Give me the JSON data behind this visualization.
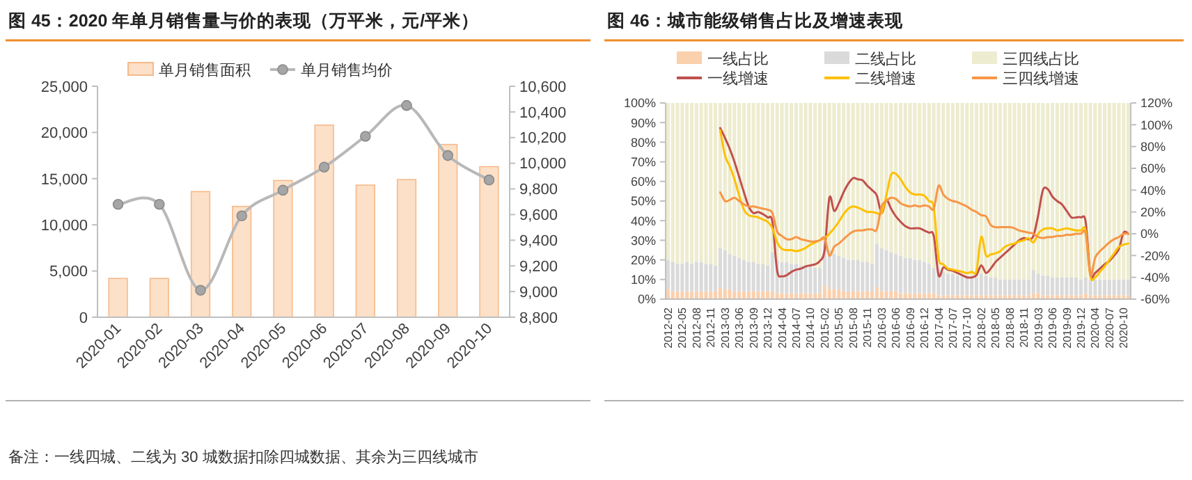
{
  "chart_data": [
    {
      "type": "bar",
      "title": "图 45：2020 年单月销售量与价的表现（万平米，元/平米）",
      "categories": [
        "2020-01",
        "2020-02",
        "2020-03",
        "2020-04",
        "2020-05",
        "2020-06",
        "2020-07",
        "2020-08",
        "2020-09",
        "2020-10"
      ],
      "series": [
        {
          "name": "单月销售面积",
          "color": "#fce0c8",
          "values": [
            4200,
            4200,
            13600,
            12000,
            14800,
            20800,
            14300,
            14900,
            18700,
            16300
          ]
        },
        {
          "name": "单月销售均价",
          "type": "line",
          "axis": "y2",
          "color": "#b8b8b8",
          "values": [
            9680,
            9680,
            9010,
            9590,
            9790,
            9970,
            10210,
            10450,
            10060,
            9870
          ]
        }
      ],
      "ylim": [
        0,
        25000
      ],
      "yticks": [
        0,
        {
          "value": 5000,
          "label": "5,000"
        },
        {
          "value": 10000,
          "label": "10,000"
        },
        {
          "value": 15000,
          "label": "15,000"
        },
        {
          "value": 20000,
          "label": "20,000"
        },
        {
          "value": 25000,
          "label": "25,000"
        }
      ],
      "y2lim": [
        8800,
        10600
      ],
      "y2ticks": [
        {
          "value": 8800,
          "label": "8,800"
        },
        {
          "value": 9000,
          "label": "9,000"
        },
        {
          "value": 9200,
          "label": "9,200"
        },
        {
          "value": 9400,
          "label": "9,400"
        },
        {
          "value": 9600,
          "label": "9,600"
        },
        {
          "value": 9800,
          "label": "9,800"
        },
        {
          "value": 10000,
          "label": "10,000"
        },
        {
          "value": 10200,
          "label": "10,200"
        },
        {
          "value": 10400,
          "label": "10,400"
        },
        {
          "value": 10600,
          "label": "10,600"
        }
      ],
      "legend": "top",
      "marker": "circle",
      "annotations": [
        "备注：一线四城、二线为 30 城数据扣除四城数据、其余为三四线城市"
      ]
    },
    {
      "type": "bar",
      "title": "图 46：城市能级销售占比及增速表现",
      "stacked": true,
      "categories": [
        "2012-02",
        null,
        null,
        "2012-05",
        null,
        null,
        "2012-08",
        null,
        null,
        "2012-11",
        null,
        null,
        "2013-03",
        null,
        null,
        "2013-06",
        null,
        null,
        "2013-09",
        null,
        null,
        "2013-12",
        null,
        null,
        "2014-04",
        null,
        null,
        "2014-07",
        null,
        null,
        "2014-10",
        null,
        null,
        "2015-02",
        null,
        null,
        "2015-05",
        null,
        null,
        "2015-08",
        null,
        null,
        "2015-11",
        null,
        null,
        "2016-03",
        null,
        null,
        "2016-06",
        null,
        null,
        "2016-09",
        null,
        null,
        "2016-12",
        null,
        null,
        "2017-04",
        null,
        null,
        "2017-07",
        null,
        null,
        "2017-10",
        null,
        null,
        "2018-02",
        null,
        null,
        "2018-05",
        null,
        null,
        "2018-08",
        null,
        null,
        "2018-11",
        null,
        null,
        "2019-03",
        null,
        null,
        "2019-06",
        null,
        null,
        "2019-09",
        null,
        null,
        "2019-12",
        null,
        null,
        "2020-04",
        null,
        null,
        "2020-07",
        null,
        null,
        "2020-10",
        null
      ],
      "series": [
        {
          "name": "一线占比",
          "color": "#fbd0ad",
          "values": [
            5,
            4,
            4,
            4,
            4,
            4,
            4,
            4,
            4,
            4,
            4,
            6,
            5,
            5,
            4,
            4,
            4,
            4,
            4,
            4,
            4,
            4,
            4,
            3,
            3,
            3,
            3,
            3,
            3,
            3,
            3,
            3,
            3,
            7,
            5,
            5,
            5,
            4,
            4,
            4,
            4,
            4,
            4,
            4,
            6,
            4,
            4,
            4,
            4,
            3,
            3,
            3,
            3,
            3,
            3,
            3,
            3,
            2,
            2,
            2,
            2,
            2,
            2,
            2,
            2,
            2,
            2,
            2,
            2,
            2,
            2,
            2,
            2,
            2,
            2,
            2,
            2,
            3,
            3,
            2,
            2,
            2,
            2,
            2,
            2,
            2,
            2,
            2,
            3,
            2,
            2,
            2,
            2,
            2,
            2,
            2,
            2,
            2
          ]
        },
        {
          "name": "二线占比",
          "color": "#dadada",
          "values": [
            15,
            15,
            14,
            14,
            15,
            14,
            15,
            15,
            14,
            14,
            13,
            20,
            20,
            18,
            18,
            17,
            16,
            15,
            15,
            14,
            14,
            13,
            20,
            17,
            16,
            16,
            15,
            15,
            14,
            14,
            14,
            13,
            13,
            23,
            20,
            18,
            17,
            17,
            16,
            16,
            16,
            15,
            15,
            14,
            22,
            22,
            21,
            20,
            19,
            19,
            18,
            18,
            17,
            17,
            16,
            15,
            13,
            13,
            12,
            11,
            11,
            10,
            10,
            10,
            9,
            9,
            11,
            10,
            9,
            9,
            8,
            8,
            8,
            8,
            8,
            8,
            8,
            12,
            10,
            10,
            10,
            9,
            9,
            9,
            9,
            9,
            9,
            8,
            8,
            8,
            8,
            8,
            8,
            8,
            8,
            8,
            8,
            8
          ]
        },
        {
          "name": "三四线占比",
          "color": "#eeecd0",
          "values": [
            80,
            81,
            82,
            82,
            81,
            82,
            81,
            81,
            82,
            82,
            83,
            74,
            75,
            77,
            78,
            79,
            80,
            81,
            81,
            82,
            82,
            83,
            76,
            80,
            81,
            81,
            82,
            82,
            83,
            83,
            83,
            84,
            84,
            70,
            75,
            77,
            78,
            79,
            80,
            80,
            80,
            81,
            81,
            82,
            72,
            74,
            75,
            76,
            77,
            78,
            79,
            79,
            80,
            80,
            81,
            82,
            84,
            85,
            86,
            87,
            87,
            88,
            88,
            88,
            89,
            89,
            87,
            88,
            89,
            89,
            90,
            90,
            90,
            90,
            90,
            90,
            90,
            85,
            87,
            88,
            88,
            89,
            89,
            89,
            89,
            89,
            89,
            90,
            89,
            90,
            90,
            90,
            90,
            90,
            90,
            90,
            90,
            90
          ]
        },
        {
          "name": "一线增速",
          "type": "line",
          "axis": "y2",
          "color": "#c0504d",
          "values": [
            null,
            null,
            null,
            null,
            null,
            null,
            null,
            null,
            null,
            null,
            null,
            97,
            88,
            78,
            66,
            52,
            38,
            25,
            19,
            20,
            18,
            15,
            11,
            -34,
            -39,
            -38,
            -35,
            -33,
            -32,
            -30,
            -29,
            -28,
            -25,
            -15,
            33,
            21,
            28,
            38,
            46,
            51,
            50,
            49,
            44,
            40,
            35,
            19,
            31,
            23,
            16,
            11,
            7,
            5,
            5,
            5,
            3,
            1,
            -2,
            -38,
            -31,
            -33,
            -34,
            -36,
            -38,
            -40,
            -40,
            -38,
            -29,
            -36,
            -32,
            -26,
            -22,
            -18,
            -14,
            -10,
            -6,
            -4,
            -5,
            -2,
            17,
            40,
            41,
            34,
            30,
            27,
            21,
            15,
            15,
            15,
            11,
            -37,
            -36,
            -32,
            -28,
            -25,
            -20,
            -14,
            1,
            0
          ]
        },
        {
          "name": "二线增速",
          "type": "line",
          "axis": "y2",
          "color": "#ffc000",
          "values": [
            null,
            null,
            null,
            null,
            null,
            null,
            null,
            null,
            null,
            null,
            null,
            95,
            72,
            62,
            50,
            35,
            22,
            17,
            16,
            15,
            13,
            11,
            5,
            -8,
            -14,
            -15,
            -15,
            -16,
            -15,
            -13,
            -10,
            -8,
            -6,
            -4,
            0,
            5,
            11,
            18,
            23,
            25,
            24,
            22,
            20,
            20,
            19,
            19,
            35,
            54,
            55,
            50,
            43,
            38,
            36,
            36,
            35,
            30,
            24,
            -22,
            -28,
            -32,
            -33,
            -34,
            -35,
            -36,
            -35,
            -34,
            -3,
            -20,
            -19,
            -18,
            -16,
            -12,
            -10,
            -9,
            -7,
            -6,
            -4,
            -8,
            0,
            4,
            5,
            5,
            3,
            4,
            5,
            4,
            3,
            3,
            3,
            -39,
            -40,
            -35,
            -30,
            -24,
            -18,
            -12,
            -10,
            -9
          ]
        },
        {
          "name": "三四线增速",
          "type": "line",
          "axis": "y2",
          "color": "#f79646",
          "values": [
            null,
            null,
            null,
            null,
            null,
            null,
            null,
            null,
            null,
            null,
            null,
            38,
            30,
            31,
            33,
            30,
            27,
            25,
            25,
            24,
            23,
            22,
            19,
            2,
            -2,
            -5,
            -5,
            -3,
            -5,
            -6,
            -7,
            -7,
            -6,
            -4,
            -20,
            -12,
            -9,
            -5,
            -1,
            2,
            3,
            3,
            4,
            4,
            4,
            25,
            30,
            33,
            32,
            28,
            26,
            25,
            26,
            25,
            26,
            25,
            23,
            44,
            36,
            32,
            30,
            29,
            27,
            25,
            22,
            20,
            17,
            16,
            8,
            6,
            6,
            6,
            6,
            5,
            3,
            2,
            1,
            0,
            -3,
            -4,
            -3,
            -3,
            -2,
            -2,
            -1,
            -1,
            0,
            0,
            0,
            -38,
            -22,
            -16,
            -12,
            -8,
            -5,
            -3,
            0,
            0
          ]
        }
      ],
      "ylim": [
        0,
        100
      ],
      "yticks": [
        {
          "value": 0,
          "label": "0%"
        },
        {
          "value": 10,
          "label": "10%"
        },
        {
          "value": 20,
          "label": "20%"
        },
        {
          "value": 30,
          "label": "30%"
        },
        {
          "value": 40,
          "label": "40%"
        },
        {
          "value": 50,
          "label": "50%"
        },
        {
          "value": 60,
          "label": "60%"
        },
        {
          "value": 70,
          "label": "70%"
        },
        {
          "value": 80,
          "label": "80%"
        },
        {
          "value": 90,
          "label": "90%"
        },
        {
          "value": 100,
          "label": "100%"
        }
      ],
      "y2lim": [
        -60,
        120
      ],
      "y2ticks": [
        {
          "value": -60,
          "label": "-60%"
        },
        {
          "value": -40,
          "label": "-40%"
        },
        {
          "value": -20,
          "label": "-20%"
        },
        {
          "value": 0,
          "label": "0%"
        },
        {
          "value": 20,
          "label": "20%"
        },
        {
          "value": 40,
          "label": "40%"
        },
        {
          "value": 60,
          "label": "60%"
        },
        {
          "value": 80,
          "label": "80%"
        },
        {
          "value": 100,
          "label": "100%"
        },
        {
          "value": 120,
          "label": "120%"
        }
      ],
      "legend": "top"
    }
  ]
}
